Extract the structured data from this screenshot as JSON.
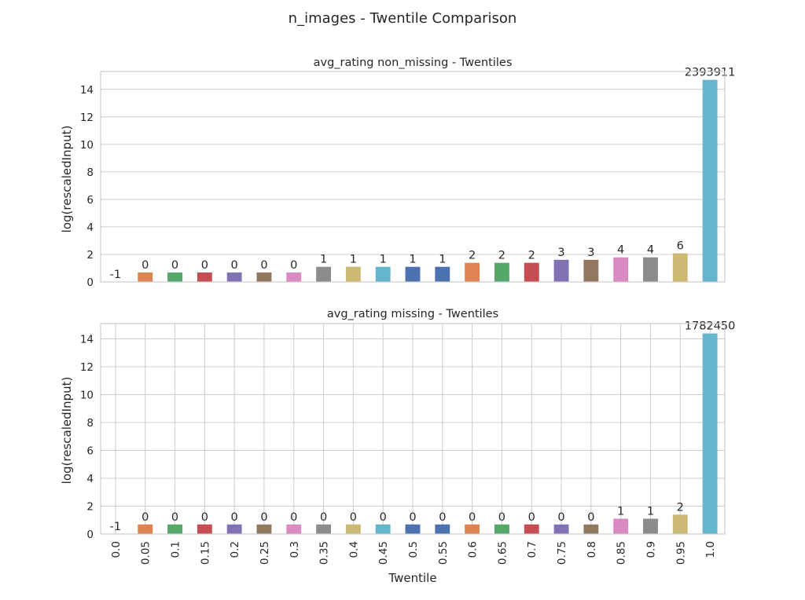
{
  "chart_data": {
    "type": "bar",
    "suptitle": "n_images - Twentile Comparison",
    "xlabel": "Twentile",
    "categories": [
      "0.0",
      "0.05",
      "0.1",
      "0.15",
      "0.2",
      "0.25",
      "0.3",
      "0.35",
      "0.4",
      "0.45",
      "0.5",
      "0.55",
      "0.6",
      "0.65",
      "0.7",
      "0.75",
      "0.8",
      "0.85",
      "0.9",
      "0.95",
      "1.0"
    ],
    "bar_colors": [
      "#4c72b0",
      "#dd8452",
      "#55a868",
      "#c44e52",
      "#8172b3",
      "#937860",
      "#da8bc3",
      "#8c8c8c",
      "#ccb974",
      "#64b5cd",
      "#4c72b0",
      "#4c72b0",
      "#dd8452",
      "#55a868",
      "#c44e52",
      "#8172b3",
      "#937860",
      "#da8bc3",
      "#8c8c8c",
      "#ccb974",
      "#64b5cd"
    ],
    "panels": [
      {
        "title": "avg_rating non_missing - Twentiles",
        "ylabel": "log(rescaledInput)",
        "ylim": [
          0,
          15.3
        ],
        "yticks": [
          0,
          2,
          4,
          6,
          8,
          10,
          12,
          14
        ],
        "vertical_grid": false,
        "values": [
          0,
          0.69,
          0.69,
          0.69,
          0.69,
          0.69,
          0.69,
          1.1,
          1.1,
          1.1,
          1.1,
          1.1,
          1.39,
          1.39,
          1.39,
          1.61,
          1.61,
          1.79,
          1.79,
          2.08,
          14.69
        ],
        "labels": [
          "-1",
          "0",
          "0",
          "0",
          "0",
          "0",
          "0",
          "1",
          "1",
          "1",
          "1",
          "1",
          "2",
          "2",
          "2",
          "3",
          "3",
          "4",
          "4",
          "6",
          "2393911"
        ]
      },
      {
        "title": "avg_rating missing - Twentiles",
        "ylabel": "log(rescaledInput)",
        "ylim": [
          0,
          15.1
        ],
        "yticks": [
          0,
          2,
          4,
          6,
          8,
          10,
          12,
          14
        ],
        "vertical_grid": true,
        "values": [
          0,
          0.69,
          0.69,
          0.69,
          0.69,
          0.69,
          0.69,
          0.69,
          0.69,
          0.69,
          0.69,
          0.69,
          0.69,
          0.69,
          0.69,
          0.69,
          0.69,
          1.1,
          1.1,
          1.39,
          14.39
        ],
        "labels": [
          "-1",
          "0",
          "0",
          "0",
          "0",
          "0",
          "0",
          "0",
          "0",
          "0",
          "0",
          "0",
          "0",
          "0",
          "0",
          "0",
          "0",
          "1",
          "1",
          "2",
          "1782450"
        ]
      }
    ]
  }
}
